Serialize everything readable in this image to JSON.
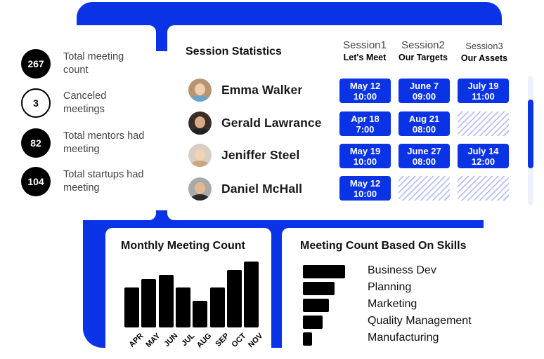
{
  "stats": [
    {
      "value": "267",
      "label": "Total meeting count",
      "outline": false
    },
    {
      "value": "3",
      "label": "Canceled meetings",
      "outline": true
    },
    {
      "value": "82",
      "label": "Total mentors had meeting",
      "outline": false
    },
    {
      "value": "104",
      "label": "Total startups had meeting",
      "outline": false
    }
  ],
  "session_stats": {
    "title": "Session Statistics",
    "sessions": [
      {
        "name": "Session1",
        "subtitle": "Let's Meet"
      },
      {
        "name": "Session2",
        "subtitle": "Our Targets"
      },
      {
        "name": "Session3",
        "subtitle": "Our Assets"
      }
    ],
    "people": [
      {
        "name": "Emma Walker",
        "slots": [
          {
            "date": "May 12",
            "time": "10:00"
          },
          {
            "date": "June 7",
            "time": "09:00"
          },
          {
            "date": "July 19",
            "time": "11:00"
          }
        ]
      },
      {
        "name": "Gerald Lawrance",
        "slots": [
          {
            "date": "Apr 18",
            "time": "7:00"
          },
          {
            "date": "Aug 21",
            "time": "08:00"
          },
          null
        ]
      },
      {
        "name": "Jeniffer Steel",
        "slots": [
          {
            "date": "May 19",
            "time": "10:00"
          },
          {
            "date": "June 27",
            "time": "08:00"
          },
          {
            "date": "July 14",
            "time": "12:00"
          }
        ]
      },
      {
        "name": "Daniel McHall",
        "slots": [
          {
            "date": "May 12",
            "time": "10:00"
          },
          null,
          null
        ]
      }
    ]
  },
  "monthly": {
    "title": "Monthly Meeting Count",
    "chart_data": {
      "type": "bar",
      "categories": [
        "APR",
        "MAY",
        "JUN",
        "JUL",
        "AUG",
        "SEP",
        "OCT",
        "NOV"
      ],
      "values": [
        59,
        72,
        78,
        59,
        40,
        59,
        85,
        98
      ],
      "ylim": [
        0,
        100
      ],
      "color": "#000000"
    }
  },
  "skills": {
    "title": "Meeting Count Based On Skills",
    "chart_data": {
      "type": "bar",
      "orientation": "horizontal",
      "categories": [
        "Business Dev",
        "Planning",
        "Marketing",
        "Quality Management",
        "Manufacturing"
      ],
      "values": [
        100,
        75,
        62,
        47,
        22
      ],
      "color": "#000000"
    }
  },
  "colors": {
    "accent": "#0a33e6",
    "hatch": "#b9c0f5"
  }
}
